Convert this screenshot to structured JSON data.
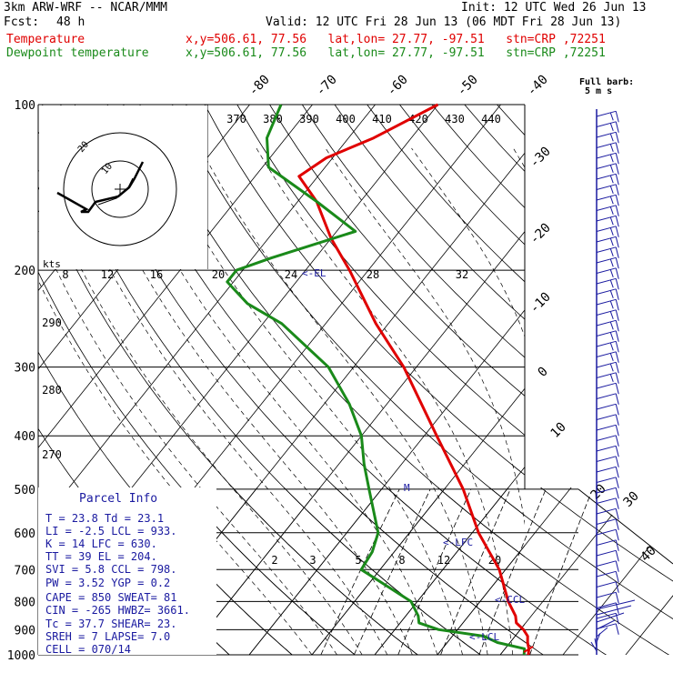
{
  "header": {
    "model": "3km ARW-WRF -- NCAR/MMM",
    "init": "Init: 12 UTC Wed 26 Jun 13",
    "fcst_label": "Fcst:",
    "fcst_value": "48 h",
    "valid": "Valid: 12 UTC Fri 28 Jun 13 (06 MDT Fri 28 Jun 13)",
    "temp_label": "Temperature",
    "temp_loc": "x,y=506.61, 77.56   lat,lon= 27.77, -97.51   stn=CRP ,72251",
    "dew_label": "Dewpoint temperature",
    "dew_loc": "x,y=506.61, 77.56   lat,lon= 27.77, -97.51   stn=CRP ,72251"
  },
  "colors": {
    "temperature": "#e00000",
    "dewpoint": "#1a8a1a",
    "barbs": "#1a1aa0",
    "parcel_text": "#1a1aa0"
  },
  "parcel_info": {
    "title": "Parcel Info",
    "rows": [
      "T   =   23.8  Td =  23.1",
      "LI  =   -2.5  LCL =  933.",
      "K   =     14  LFC =  630.",
      "TT  =     39  EL  =  204.",
      "SVI =    5.8  CCL =  798.",
      "PW  =   3.52  YGP =   0.2",
      "CAPE =   850  SWEAT=   81",
      "CIN  =  -265  HWBZ= 3661.",
      "Tc  =   37.7  SHEAR=  23.",
      "SREH =     7  LAPSE=  7.0",
      "CELL = 070/14"
    ]
  },
  "full_barb_label": "Full barb:",
  "full_barb_unit": "5 m s",
  "hodograph": {
    "kts_label": "kts"
  },
  "level_markers": [
    "<-EL",
    "<-LFC",
    "<-CCL",
    "<-LCL",
    "M"
  ],
  "chart_data": {
    "type": "line",
    "title": "",
    "y_axis": {
      "scale": "log",
      "range": [
        1000,
        100
      ],
      "ticks": [
        100,
        200,
        300,
        400,
        500,
        600,
        700,
        800,
        900,
        1000
      ]
    },
    "x_axis": {
      "ticks": [
        -80,
        -70,
        -60,
        -50,
        -40,
        -30,
        -20,
        -10,
        0,
        10,
        20,
        30,
        40
      ]
    },
    "theta_labels": [
      370,
      380,
      390,
      400,
      410,
      420,
      430,
      440
    ],
    "theta_e_labels": [
      8,
      12,
      16,
      20,
      24,
      28,
      32
    ],
    "theta_labels_left": [
      290,
      280,
      270
    ],
    "mixing_ratio_labels": [
      2,
      3,
      5,
      8,
      12,
      20
    ],
    "hodograph_rings": [
      "10",
      "20"
    ],
    "series": [
      {
        "name": "Temperature",
        "points": [
          [
            1000,
            24.5
          ],
          [
            975,
            23.8
          ],
          [
            950,
            22.8
          ],
          [
            925,
            22.0
          ],
          [
            900,
            20.5
          ],
          [
            875,
            18.5
          ],
          [
            850,
            17.5
          ],
          [
            800,
            14.5
          ],
          [
            700,
            9.0
          ],
          [
            600,
            1.0
          ],
          [
            500,
            -7.0
          ],
          [
            400,
            -18.0
          ],
          [
            300,
            -32.0
          ],
          [
            250,
            -42.0
          ],
          [
            200,
            -53.0
          ],
          [
            175,
            -60.0
          ],
          [
            150,
            -67.0
          ],
          [
            135,
            -73.0
          ],
          [
            125,
            -71.0
          ],
          [
            115,
            -66.0
          ],
          [
            100,
            -60.0
          ]
        ]
      },
      {
        "name": "Dewpoint temperature",
        "points": [
          [
            1000,
            23.8
          ],
          [
            975,
            23.1
          ],
          [
            950,
            18.0
          ],
          [
            925,
            15.0
          ],
          [
            900,
            7.0
          ],
          [
            875,
            3.0
          ],
          [
            850,
            2.0
          ],
          [
            800,
            -1.0
          ],
          [
            700,
            -13.0
          ],
          [
            650,
            -13.5
          ],
          [
            600,
            -15.0
          ],
          [
            500,
            -22.0
          ],
          [
            450,
            -26.0
          ],
          [
            400,
            -30.0
          ],
          [
            350,
            -36.0
          ],
          [
            300,
            -44.0
          ],
          [
            250,
            -57.0
          ],
          [
            230,
            -65.0
          ],
          [
            210,
            -71.0
          ],
          [
            200,
            -71.0
          ],
          [
            190,
            -67.0
          ],
          [
            170,
            -57.0
          ],
          [
            150,
            -67.0
          ],
          [
            130,
            -79.0
          ],
          [
            115,
            -83.0
          ],
          [
            100,
            -85.0
          ]
        ]
      }
    ]
  }
}
